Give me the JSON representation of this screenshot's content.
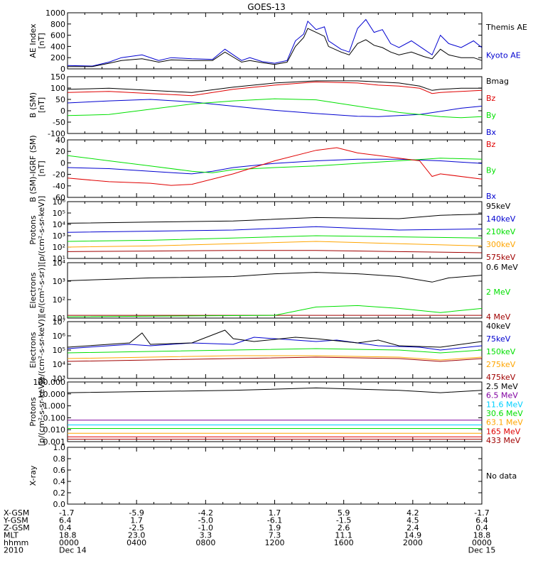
{
  "title": "GOES-13",
  "colors": {
    "black": "#000000",
    "blue": "#0000d0",
    "red": "#e00000",
    "green": "#00e000",
    "darkred": "#a00000",
    "orange": "#ffa500",
    "teal": "#00a0c0",
    "cyan": "#00d0ff",
    "purple": "#8000a0",
    "darkblue": "#0000a0"
  },
  "chart_data": [
    {
      "type": "line",
      "panel": "ae",
      "ylabel": [
        "AE Index",
        "[nT]"
      ],
      "yscale": "linear",
      "ylim": [
        0,
        1000
      ],
      "yticks": [
        "0",
        "200",
        "400",
        "600",
        "800",
        "1000"
      ],
      "series": [
        {
          "name": "Kyoto AE",
          "color": "#0000d0",
          "x": [
            0,
            0.06,
            0.1,
            0.13,
            0.18,
            0.22,
            0.25,
            0.3,
            0.35,
            0.38,
            0.42,
            0.44,
            0.47,
            0.5,
            0.53,
            0.55,
            0.57,
            0.58,
            0.6,
            0.62,
            0.63,
            0.66,
            0.68,
            0.7,
            0.72,
            0.74,
            0.76,
            0.78,
            0.8,
            0.83,
            0.86,
            0.88,
            0.9,
            0.92,
            0.95,
            0.98,
            1
          ],
          "y": [
            60,
            50,
            120,
            200,
            250,
            150,
            200,
            180,
            170,
            350,
            150,
            200,
            130,
            100,
            150,
            500,
            620,
            850,
            700,
            750,
            500,
            350,
            300,
            720,
            880,
            650,
            700,
            450,
            380,
            500,
            350,
            250,
            600,
            450,
            380,
            500,
            380
          ]
        },
        {
          "name": "Themis AE",
          "color": "#000000",
          "x": [
            0,
            0.06,
            0.1,
            0.13,
            0.18,
            0.22,
            0.25,
            0.3,
            0.35,
            0.38,
            0.42,
            0.44,
            0.47,
            0.5,
            0.53,
            0.55,
            0.57,
            0.58,
            0.6,
            0.62,
            0.63,
            0.66,
            0.68,
            0.7,
            0.72,
            0.74,
            0.76,
            0.78,
            0.8,
            0.83,
            0.86,
            0.88,
            0.9,
            0.92,
            0.95,
            0.98,
            1
          ],
          "y": [
            40,
            40,
            100,
            150,
            180,
            120,
            160,
            150,
            150,
            300,
            120,
            150,
            110,
            80,
            120,
            400,
            560,
            720,
            650,
            580,
            400,
            300,
            250,
            450,
            520,
            420,
            380,
            300,
            250,
            300,
            220,
            180,
            350,
            250,
            200,
            200,
            150
          ]
        }
      ]
    },
    {
      "type": "line",
      "panel": "bsm",
      "ylabel": [
        "B (SM)",
        "[nT]"
      ],
      "yscale": "linear",
      "ylim": [
        -120,
        150
      ],
      "yticks": [
        "-100",
        "-50",
        "0",
        "50",
        "100",
        "150"
      ],
      "series": [
        {
          "name": "Bx",
          "color": "#0000d0",
          "x": [
            0,
            0.1,
            0.2,
            0.3,
            0.4,
            0.5,
            0.6,
            0.7,
            0.75,
            0.8,
            0.85,
            0.9,
            0.95,
            1
          ],
          "y": [
            25,
            35,
            42,
            30,
            10,
            -10,
            -25,
            -38,
            -40,
            -35,
            -30,
            -15,
            0,
            10
          ]
        },
        {
          "name": "By",
          "color": "#00e000",
          "x": [
            0,
            0.1,
            0.2,
            0.3,
            0.4,
            0.5,
            0.6,
            0.7,
            0.75,
            0.8,
            0.85,
            0.9,
            0.95,
            1
          ],
          "y": [
            -35,
            -30,
            -5,
            20,
            35,
            45,
            40,
            10,
            -5,
            -20,
            -30,
            -40,
            -45,
            -40
          ]
        },
        {
          "name": "Bz",
          "color": "#e00000",
          "x": [
            0,
            0.1,
            0.2,
            0.3,
            0.4,
            0.5,
            0.6,
            0.7,
            0.75,
            0.8,
            0.85,
            0.88,
            0.9,
            0.95,
            1
          ],
          "y": [
            75,
            80,
            70,
            60,
            90,
            110,
            125,
            120,
            110,
            105,
            95,
            70,
            75,
            80,
            85
          ]
        },
        {
          "name": "Bmag",
          "color": "#000000",
          "x": [
            0,
            0.1,
            0.2,
            0.3,
            0.4,
            0.5,
            0.6,
            0.7,
            0.75,
            0.8,
            0.85,
            0.88,
            0.9,
            0.95,
            1
          ],
          "y": [
            90,
            95,
            85,
            75,
            100,
            120,
            130,
            130,
            125,
            120,
            105,
            85,
            90,
            95,
            95
          ]
        }
      ]
    },
    {
      "type": "line",
      "panel": "bigrf",
      "ylabel": [
        "B (SM)-IGRF (SM)",
        "[nT]"
      ],
      "yscale": "linear",
      "ylim": [
        -65,
        45
      ],
      "yticks": [
        "-60",
        "-40",
        "-20",
        "0",
        "20",
        "40"
      ],
      "series": [
        {
          "name": "Bx",
          "color": "#0000d0",
          "x": [
            0,
            0.1,
            0.2,
            0.3,
            0.35,
            0.4,
            0.5,
            0.6,
            0.7,
            0.8,
            0.9,
            1
          ],
          "y": [
            -8,
            -10,
            -15,
            -20,
            -15,
            -8,
            0,
            5,
            8,
            8,
            5,
            0
          ]
        },
        {
          "name": "By",
          "color": "#00e000",
          "x": [
            0,
            0.1,
            0.2,
            0.3,
            0.35,
            0.4,
            0.5,
            0.6,
            0.7,
            0.8,
            0.9,
            1
          ],
          "y": [
            15,
            5,
            -5,
            -15,
            -18,
            -12,
            -8,
            -5,
            0,
            5,
            10,
            8
          ]
        },
        {
          "name": "Bz",
          "color": "#e00000",
          "x": [
            0,
            0.1,
            0.2,
            0.25,
            0.3,
            0.4,
            0.5,
            0.6,
            0.65,
            0.7,
            0.8,
            0.85,
            0.88,
            0.9,
            1
          ],
          "y": [
            -28,
            -35,
            -38,
            -42,
            -40,
            -20,
            5,
            25,
            30,
            20,
            10,
            5,
            -25,
            -20,
            -30
          ]
        }
      ]
    },
    {
      "type": "line",
      "panel": "protons1",
      "ylabel": [
        "Protons",
        "[p/(cm²-s-sr-keV)]"
      ],
      "yscale": "log",
      "ylim": [
        1,
        6
      ],
      "yticks": [
        "10¹",
        "10²",
        "10³",
        "10⁴",
        "10⁵",
        "10⁶"
      ],
      "series": [
        {
          "name": "575keV",
          "color": "#a00000",
          "x": [
            0,
            0.2,
            0.4,
            0.6,
            0.8,
            1
          ],
          "y": [
            1.6,
            1.65,
            1.7,
            1.7,
            1.6,
            1.5
          ]
        },
        {
          "name": "300keV",
          "color": "#ffa500",
          "x": [
            0,
            0.2,
            0.4,
            0.6,
            0.8,
            1
          ],
          "y": [
            2.0,
            2.1,
            2.3,
            2.5,
            2.3,
            2.1
          ]
        },
        {
          "name": "210keV",
          "color": "#00e000",
          "x": [
            0,
            0.2,
            0.4,
            0.6,
            0.8,
            1
          ],
          "y": [
            2.5,
            2.6,
            2.8,
            3.0,
            2.9,
            2.8
          ]
        },
        {
          "name": "140keV",
          "color": "#0000d0",
          "x": [
            0,
            0.2,
            0.4,
            0.6,
            0.8,
            1
          ],
          "y": [
            3.3,
            3.4,
            3.5,
            3.8,
            3.5,
            3.6
          ]
        },
        {
          "name": "95keV",
          "color": "#000000",
          "x": [
            0,
            0.2,
            0.4,
            0.6,
            0.8,
            0.9,
            1
          ],
          "y": [
            4.1,
            4.2,
            4.3,
            4.6,
            4.5,
            4.8,
            4.9
          ]
        }
      ]
    },
    {
      "type": "line",
      "panel": "electrons1",
      "ylabel": [
        "Electrons",
        "[e/(cm²-s-sr)]"
      ],
      "yscale": "log",
      "ylim": [
        1,
        5
      ],
      "yticks": [
        "10¹",
        "10²",
        "10³",
        "10⁴"
      ],
      "series": [
        {
          "name": "4 MeV",
          "color": "#a00000",
          "x": [
            0,
            1
          ],
          "y": [
            1.2,
            1.2
          ]
        },
        {
          "name": "2 MeV",
          "color": "#00e000",
          "x": [
            0,
            0.5,
            0.6,
            0.7,
            0.8,
            0.9,
            1
          ],
          "y": [
            1.1,
            1.2,
            1.8,
            1.9,
            1.7,
            1.4,
            1.7
          ]
        },
        {
          "name": "0.6 MeV",
          "color": "#000000",
          "x": [
            0,
            0.1,
            0.2,
            0.4,
            0.5,
            0.6,
            0.7,
            0.8,
            0.88,
            0.92,
            1
          ],
          "y": [
            3.7,
            3.8,
            3.9,
            4.0,
            4.2,
            4.3,
            4.2,
            4.0,
            3.6,
            3.9,
            4.1
          ]
        }
      ]
    },
    {
      "type": "line",
      "panel": "electrons2",
      "ylabel": [
        "Electrons",
        "[e/(cm²-s-sr-keV)]"
      ],
      "yscale": "log",
      "ylim": [
        3,
        7
      ],
      "yticks": [
        "10³",
        "10⁴",
        "10⁵",
        "10⁶",
        "10⁷"
      ],
      "series": [
        {
          "name": "475keV",
          "color": "#a00000",
          "x": [
            0,
            0.2,
            0.4,
            0.6,
            0.8,
            0.9,
            1
          ],
          "y": [
            4.2,
            4.3,
            4.4,
            4.5,
            4.4,
            4.2,
            4.4
          ]
        },
        {
          "name": "275keV",
          "color": "#ffa500",
          "x": [
            0,
            0.2,
            0.4,
            0.6,
            0.8,
            0.9,
            1
          ],
          "y": [
            4.4,
            4.5,
            4.6,
            4.6,
            4.5,
            4.3,
            4.5
          ]
        },
        {
          "name": "150keV",
          "color": "#00e000",
          "x": [
            0,
            0.2,
            0.4,
            0.6,
            0.8,
            0.9,
            1
          ],
          "y": [
            4.8,
            4.9,
            5.0,
            5.1,
            5.0,
            4.8,
            5.0
          ]
        },
        {
          "name": "75keV",
          "color": "#0000d0",
          "x": [
            0,
            0.15,
            0.2,
            0.3,
            0.4,
            0.45,
            0.6,
            0.65,
            0.75,
            0.85,
            0.9,
            1
          ],
          "y": [
            5.1,
            5.4,
            5.3,
            5.5,
            5.4,
            5.9,
            5.6,
            5.7,
            5.3,
            5.2,
            5.0,
            5.3
          ]
        },
        {
          "name": "40keV",
          "color": "#000000",
          "x": [
            0,
            0.15,
            0.18,
            0.2,
            0.3,
            0.38,
            0.4,
            0.45,
            0.55,
            0.6,
            0.7,
            0.75,
            0.8,
            0.9,
            1
          ],
          "y": [
            5.2,
            5.5,
            6.2,
            5.4,
            5.5,
            6.4,
            5.8,
            5.6,
            5.9,
            5.8,
            5.5,
            5.7,
            5.3,
            5.2,
            5.6
          ]
        }
      ]
    },
    {
      "type": "line",
      "panel": "protons2",
      "ylabel": [
        "Protons",
        "[p/(cm²-s-sr-keV)]"
      ],
      "yscale": "log",
      "ylim": [
        -3,
        2
      ],
      "yticks": [
        "0.001",
        "0.010",
        "0.100",
        "1.000",
        "10.000",
        "100.000"
      ],
      "series": [
        {
          "name": "433 MeV",
          "color": "#a00000",
          "x": [
            0,
            1
          ],
          "y": [
            -2.8,
            -2.8
          ]
        },
        {
          "name": "165 MeV",
          "color": "#e00000",
          "x": [
            0,
            1
          ],
          "y": [
            -2.6,
            -2.6
          ]
        },
        {
          "name": "63.1 MeV",
          "color": "#ffa500",
          "x": [
            0,
            1
          ],
          "y": [
            -2.3,
            -2.3
          ]
        },
        {
          "name": "30.6 MeV",
          "color": "#00e000",
          "x": [
            0,
            1
          ],
          "y": [
            -1.9,
            -1.9
          ]
        },
        {
          "name": "11.6 MeV",
          "color": "#00d0ff",
          "x": [
            0,
            1
          ],
          "y": [
            -1.6,
            -1.6
          ]
        },
        {
          "name": "6.5 MeV",
          "color": "#8000a0",
          "x": [
            0,
            1
          ],
          "y": [
            -1.2,
            -1.2
          ]
        },
        {
          "name": "2.5 MeV",
          "color": "#000000",
          "x": [
            0,
            0.2,
            0.4,
            0.6,
            0.8,
            0.9,
            1
          ],
          "y": [
            1.1,
            1.2,
            1.3,
            1.5,
            1.3,
            1.1,
            1.3
          ]
        }
      ]
    },
    {
      "type": "line",
      "panel": "xray",
      "ylabel": [
        "X-ray"
      ],
      "yscale": "linear",
      "ylim": [
        0,
        1
      ],
      "yticks": [
        "0.0",
        "0.2",
        "0.4",
        "0.6",
        "0.8",
        "1.0"
      ],
      "series": [],
      "note": "No data"
    }
  ],
  "footer": {
    "row_labels": [
      "X-GSM",
      "Y-GSM",
      "Z-GSM",
      "MLT",
      "hhmm",
      "2010"
    ],
    "columns": [
      [
        "-1.7",
        "6.4",
        "0.4",
        "18.8",
        "0000",
        "Dec 14"
      ],
      [
        "-5.9",
        "1.7",
        "-2.5",
        "23.0",
        "0400",
        ""
      ],
      [
        "-4.2",
        "-5.0",
        "-1.0",
        "3.3",
        "0800",
        ""
      ],
      [
        "1.7",
        "-6.1",
        "1.9",
        "7.3",
        "1200",
        ""
      ],
      [
        "5.9",
        "-1.5",
        "2.6",
        "11.1",
        "1600",
        ""
      ],
      [
        "4.2",
        "4.5",
        "2.4",
        "14.9",
        "2000",
        ""
      ],
      [
        "-1.7",
        "6.4",
        "0.4",
        "18.8",
        "0000",
        "Dec 15"
      ]
    ]
  }
}
